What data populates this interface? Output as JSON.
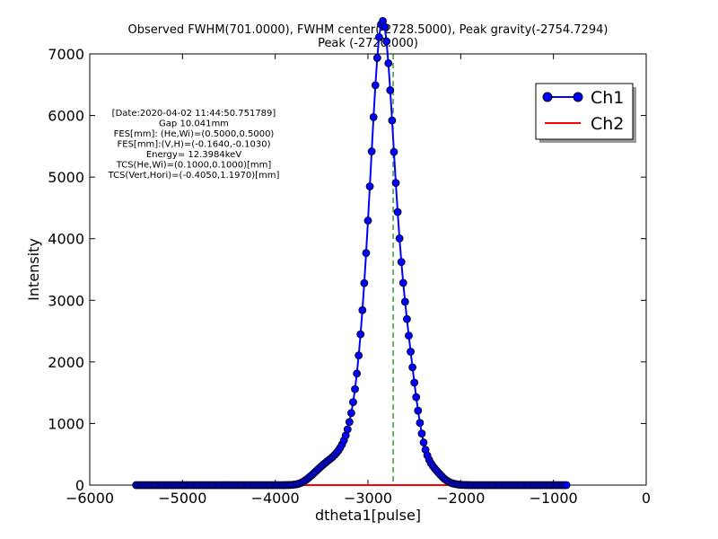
{
  "chart_data": {
    "type": "line",
    "title_line1": "Observed FWHM(701.0000), FWHM center(-2728.5000), Peak gravity(-2754.7294)",
    "title_line2": "Peak (-2720.000)",
    "xlabel": "dtheta1[pulse]",
    "ylabel": "Intensity",
    "xlim": [
      -6000,
      0
    ],
    "ylim": [
      0,
      7000
    ],
    "xticks": [
      -6000,
      -5000,
      -4000,
      -3000,
      -2000,
      -1000,
      0
    ],
    "yticks": [
      0,
      1000,
      2000,
      3000,
      4000,
      5000,
      6000,
      7000
    ],
    "xtick_labels": [
      "−6000",
      "−5000",
      "−4000",
      "−3000",
      "−2000",
      "−1000",
      "0"
    ],
    "ytick_labels": [
      "0",
      "1000",
      "2000",
      "3000",
      "4000",
      "5000",
      "6000",
      "7000"
    ],
    "grid": false,
    "legend_position": "top-right",
    "peak_marker_x": -2728.5,
    "info_lines": [
      "[Date:2020-04-02 11:44:50.751789]",
      "Gap   10.041mm",
      "FES[mm]: (He,Wi)=(0.5000,0.5000)",
      "FES[mm]:(V,H)=(-0.1640,-0.1030)",
      "Energy=      12.3984keV",
      "TCS(He,Wi)=(0.1000,0.1000)[mm]",
      "TCS(Vert,Hori)=(-0.4050,1.1970)[mm]"
    ],
    "series": [
      {
        "name": "Ch1",
        "color": "#0000ff",
        "x_start": -5500,
        "x_step": 20,
        "values": [
          0,
          0,
          0,
          0,
          0,
          0,
          0,
          0,
          0,
          0,
          0,
          0,
          0,
          0,
          0,
          0,
          0,
          0,
          0,
          0,
          0,
          0,
          0,
          0,
          0,
          0,
          0,
          0,
          0,
          0,
          0,
          0,
          0,
          0,
          0,
          0,
          0,
          0,
          0,
          0,
          0,
          0,
          0,
          0,
          0,
          0,
          0,
          0,
          0,
          0,
          0,
          0,
          0,
          0,
          0,
          0,
          0,
          0,
          0,
          0,
          0,
          0,
          0,
          0,
          0,
          0,
          0,
          0,
          0,
          0,
          0,
          0,
          0,
          0,
          0,
          0,
          0,
          0,
          0,
          0,
          0,
          1,
          1,
          2,
          4,
          7,
          11,
          17,
          26,
          39,
          54,
          73,
          95,
          118,
          144,
          170,
          198,
          226,
          254,
          283,
          310,
          336,
          361,
          386,
          410,
          433,
          460,
          489,
          522,
          560,
          606,
          660,
          726,
          806,
          904,
          1024,
          1170,
          1347,
          1559,
          1811,
          2106,
          2448,
          2840,
          3280,
          3767,
          4294,
          4849,
          5417,
          5974,
          6491,
          6935,
          7272,
          7477,
          7534,
          7439,
          7203,
          6849,
          6410,
          5919,
          5408,
          4906,
          4433,
          4004,
          3622,
          3283,
          2977,
          2695,
          2426,
          2166,
          1912,
          1664,
          1428,
          1208,
          1010,
          837,
          692,
          574,
          481,
          410,
          354,
          309,
          270,
          235,
          201,
          168,
          137,
          108,
          84,
          63,
          47,
          34,
          25,
          18,
          12,
          8,
          6,
          4,
          2,
          1,
          1,
          0,
          0,
          0,
          0,
          0,
          0,
          0,
          0,
          0,
          0,
          0,
          0,
          0,
          0,
          0,
          0,
          0,
          0,
          0,
          0,
          0,
          0,
          0,
          0,
          0,
          0,
          0,
          0,
          0,
          0,
          0,
          0,
          0,
          0,
          0,
          0,
          0,
          0,
          0,
          0,
          0,
          0,
          0,
          0,
          0,
          0,
          0,
          0,
          0,
          0,
          0,
          0,
          0
        ]
      },
      {
        "name": "Ch2",
        "color": "#ff0000",
        "x_start": -5500,
        "x_step": 20,
        "values_constant": 0
      }
    ]
  }
}
